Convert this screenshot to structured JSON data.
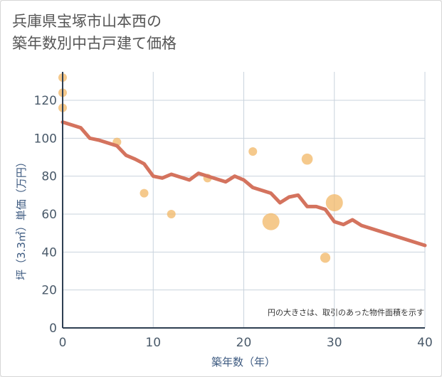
{
  "title_lines": [
    "兵庫県宝塚市山本西の",
    "築年数別中古戸建て価格"
  ],
  "chart_data": {
    "type": "scatter",
    "title": "兵庫県宝塚市山本西の築年数別中古戸建て価格",
    "xlabel": "築年数（年）",
    "ylabel": "坪（3.3㎡）単価（万円）",
    "xlim": [
      0,
      40
    ],
    "ylim": [
      0,
      135
    ],
    "xticks": [
      0,
      10,
      20,
      30,
      40
    ],
    "yticks": [
      0,
      20,
      40,
      60,
      80,
      100,
      120
    ],
    "grid": true,
    "note": "円の大きさは、取引のあった物件面積を示す",
    "colors": {
      "bubble": "#f2b765",
      "line": "#d4735e",
      "grid": "#c9d3dd",
      "axis": "#2e3f52"
    },
    "bubbles": [
      {
        "x": 0,
        "y": 132,
        "size": 1
      },
      {
        "x": 0,
        "y": 124,
        "size": 1
      },
      {
        "x": 0,
        "y": 116,
        "size": 1
      },
      {
        "x": 6,
        "y": 98,
        "size": 1
      },
      {
        "x": 9,
        "y": 71,
        "size": 1
      },
      {
        "x": 12,
        "y": 60,
        "size": 1
      },
      {
        "x": 16,
        "y": 79,
        "size": 1
      },
      {
        "x": 21,
        "y": 93,
        "size": 1
      },
      {
        "x": 23,
        "y": 56,
        "size": 4
      },
      {
        "x": 27,
        "y": 89,
        "size": 1.7
      },
      {
        "x": 29,
        "y": 37,
        "size": 1.4
      },
      {
        "x": 30,
        "y": 66,
        "size": 4
      }
    ],
    "trend_line": {
      "x": [
        0,
        1,
        2,
        3,
        4,
        5,
        6,
        7,
        8,
        9,
        10,
        11,
        12,
        13,
        14,
        15,
        16,
        17,
        18,
        19,
        20,
        21,
        22,
        23,
        24,
        25,
        26,
        27,
        28,
        29,
        30,
        31,
        32,
        33,
        40
      ],
      "y": [
        108.5,
        107,
        105.5,
        100,
        99,
        97.5,
        96,
        91,
        89,
        86.5,
        80,
        79,
        81,
        79.5,
        78,
        81.5,
        80,
        78.5,
        77,
        80,
        78,
        74,
        72.5,
        71,
        66,
        69,
        70,
        64,
        64,
        62.5,
        56,
        54.5,
        57,
        54,
        43.5
      ]
    }
  }
}
